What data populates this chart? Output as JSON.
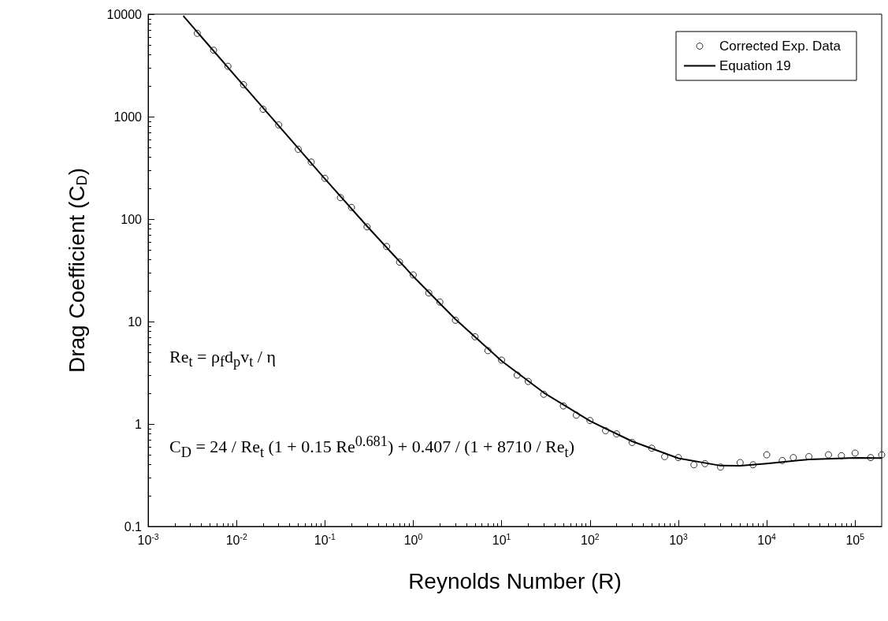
{
  "chart_data": {
    "type": "scatter",
    "xlabel": "Reynolds Number (R)",
    "ylabel": "Drag Coefficient (C$_{D}$)",
    "log": "xy",
    "xlim": [
      0.001,
      200000
    ],
    "ylim": [
      0.1,
      10000
    ],
    "xticks": [
      {
        "value": 0.001,
        "label": "10$^{-3}$"
      },
      {
        "value": 0.01,
        "label": "10$^{-2}$"
      },
      {
        "value": 0.1,
        "label": "10$^{-1}$"
      },
      {
        "value": 1,
        "label": "10$^{0}$"
      },
      {
        "value": 10,
        "label": "10$^{1}$"
      },
      {
        "value": 100,
        "label": "10$^{2}$"
      },
      {
        "value": 1000,
        "label": "10$^{3}$"
      },
      {
        "value": 10000,
        "label": "10$^{4}$"
      },
      {
        "value": 100000,
        "label": "10$^{5}$"
      }
    ],
    "yticks": [
      0.1,
      1,
      10,
      100,
      1000,
      10000
    ],
    "grid": false,
    "legend": "top right",
    "marker": "circle",
    "series": [
      {
        "name": "Corrected Exp. Data",
        "color": "#000000",
        "x": [
          0.0036,
          0.0055,
          0.008,
          0.012,
          0.02,
          0.03,
          0.05,
          0.07,
          0.1,
          0.15,
          0.2,
          0.3,
          0.5,
          0.7,
          1,
          1.5,
          2,
          3,
          5,
          7,
          10,
          15,
          20,
          30,
          50,
          70,
          100,
          150,
          200,
          300,
          500,
          700,
          1000,
          1500,
          2000,
          3000,
          5000,
          7000,
          10000,
          15000,
          20000,
          30000,
          50000,
          70000,
          100000,
          150000,
          200000
        ],
        "values": [
          6500,
          4450,
          3100,
          2050,
          1180,
          830,
          480,
          360,
          250,
          162,
          130,
          84,
          54,
          38,
          28.5,
          19,
          15.5,
          10.3,
          7.1,
          5.2,
          4.2,
          3,
          2.6,
          1.95,
          1.5,
          1.22,
          1.08,
          0.86,
          0.8,
          0.66,
          0.58,
          0.48,
          0.47,
          0.4,
          0.41,
          0.38,
          0.42,
          0.4,
          0.5,
          0.44,
          0.47,
          0.48,
          0.5,
          0.49,
          0.52,
          0.47,
          0.5
        ]
      },
      {
        "name": "Equation 19",
        "type": "line",
        "color": "#000000",
        "marker": "none",
        "x": [
          0.0025,
          0.01,
          0.1,
          0.3,
          1,
          3,
          10,
          30,
          100,
          300,
          1000,
          3000,
          5000,
          10000,
          30000,
          100000,
          200000
        ],
        "values": [
          9620,
          2416,
          247.5,
          85.3,
          27.6,
          10.54,
          4.13,
          2.02,
          1.07,
          0.677,
          0.463,
          0.392,
          0.391,
          0.41,
          0.451,
          0.466,
          0.464
        ]
      }
    ],
    "annotations": [
      "Re$_{t}$ = ρ$_{f}$d$_{p}$v$_{t}$ / η",
      "C$_{D}$ = 24 / Re$_{t}$ (1 + 0.15 Re$^{0.681}$) + 0.407 / (1 + 8710 / Re$_{t}$)"
    ]
  }
}
